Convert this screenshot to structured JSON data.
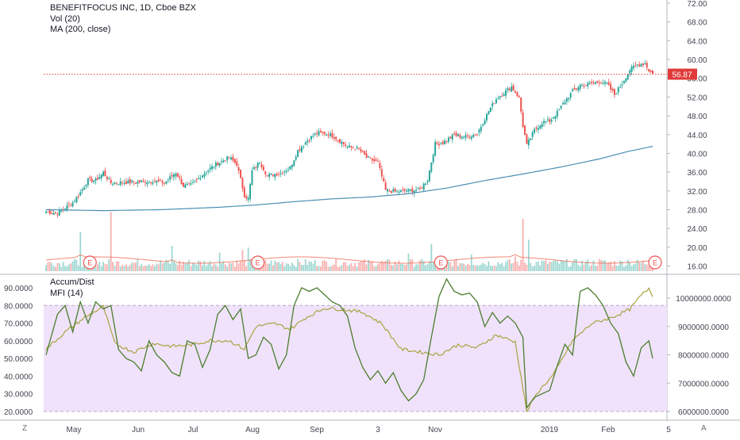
{
  "main_legend": {
    "title": "BENEFITFOCUS INC, 1D, Cboe BZX",
    "vol": "Vol (20)",
    "ma": "MA (200, close)"
  },
  "osc_legend": {
    "accum": "Accum/Dist",
    "mfi": "MFI (14)"
  },
  "scale_buttons": {
    "left": "Z",
    "right": "A"
  },
  "colors": {
    "up": "#26a69a",
    "down": "#ef5350",
    "ma": "#4a8fb3",
    "mfi": "#4b7e2d",
    "accum": "#a9a43f",
    "band": "#f0e2fb",
    "last_price": "#e03a3a"
  },
  "chart_data": [
    {
      "type": "candlestick",
      "title": "BENEFITFOCUS INC, 1D, Cboe BZX",
      "ylim": [
        16,
        72
      ],
      "y_ticks": [
        "72.00",
        "68.00",
        "64.00",
        "60.00",
        "56.00",
        "52.00",
        "48.00",
        "44.00",
        "40.00",
        "36.00",
        "32.00",
        "28.00",
        "24.00",
        "20.00",
        "16.00"
      ],
      "x_ticks": [
        "May",
        "Jun",
        "Jul",
        "Aug",
        "Sep",
        "3",
        "Nov",
        "2019",
        "Feb",
        "5"
      ],
      "last_price": "56.87",
      "close_anchors": [
        [
          0,
          27.6
        ],
        [
          6,
          27.2
        ],
        [
          10,
          28.4
        ],
        [
          14,
          29.5
        ],
        [
          18,
          31.7
        ],
        [
          22,
          34.3
        ],
        [
          26,
          34.2
        ],
        [
          30,
          35.9
        ],
        [
          34,
          33.7
        ],
        [
          40,
          33.8
        ],
        [
          48,
          33.9
        ],
        [
          56,
          34.2
        ],
        [
          62,
          33.7
        ],
        [
          68,
          35.9
        ],
        [
          72,
          33.1
        ],
        [
          76,
          33.2
        ],
        [
          84,
          36.2
        ],
        [
          90,
          37.9
        ],
        [
          96,
          39.1
        ],
        [
          100,
          37.7
        ],
        [
          104,
          31.1
        ],
        [
          106,
          30.3
        ],
        [
          108,
          36.2
        ],
        [
          112,
          38.2
        ],
        [
          116,
          35.2
        ],
        [
          124,
          36.0
        ],
        [
          128,
          37.0
        ],
        [
          132,
          40.6
        ],
        [
          138,
          43.2
        ],
        [
          142,
          44.3
        ],
        [
          146,
          44.3
        ],
        [
          150,
          43.8
        ],
        [
          154,
          42.7
        ],
        [
          158,
          41.4
        ],
        [
          164,
          40.9
        ],
        [
          168,
          39.1
        ],
        [
          174,
          38.0
        ],
        [
          178,
          32.1
        ],
        [
          184,
          31.8
        ],
        [
          190,
          32.1
        ],
        [
          196,
          32.3
        ],
        [
          200,
          34.4
        ],
        [
          204,
          42.0
        ],
        [
          208,
          42.3
        ],
        [
          214,
          43.9
        ],
        [
          220,
          43.5
        ],
        [
          226,
          44.2
        ],
        [
          232,
          49.0
        ],
        [
          236,
          51.6
        ],
        [
          240,
          52.9
        ],
        [
          244,
          54.2
        ],
        [
          248,
          51.9
        ],
        [
          250,
          45.9
        ],
        [
          252,
          41.7
        ],
        [
          256,
          44.9
        ],
        [
          260,
          46.6
        ],
        [
          264,
          46.9
        ],
        [
          268,
          48.7
        ],
        [
          272,
          51.1
        ],
        [
          276,
          53.2
        ],
        [
          280,
          54.5
        ],
        [
          284,
          54.7
        ],
        [
          290,
          55.3
        ],
        [
          294,
          54.8
        ],
        [
          298,
          52.5
        ],
        [
          302,
          54.9
        ],
        [
          306,
          57.8
        ],
        [
          310,
          58.9
        ],
        [
          314,
          59.2
        ],
        [
          316,
          57.7
        ],
        [
          318,
          56.9
        ]
      ],
      "ma200": [
        [
          0,
          28.0
        ],
        [
          30,
          27.8
        ],
        [
          60,
          28.0
        ],
        [
          90,
          28.5
        ],
        [
          110,
          29.0
        ],
        [
          130,
          29.7
        ],
        [
          150,
          30.3
        ],
        [
          170,
          30.7
        ],
        [
          190,
          31.4
        ],
        [
          210,
          32.6
        ],
        [
          230,
          34.2
        ],
        [
          250,
          35.6
        ],
        [
          270,
          37.1
        ],
        [
          290,
          38.8
        ],
        [
          305,
          40.4
        ],
        [
          318,
          41.5
        ]
      ]
    },
    {
      "type": "bar",
      "name": "Vol (20)",
      "spikes": [
        [
          18,
          4.5
        ],
        [
          34,
          6.8
        ],
        [
          66,
          2.9
        ],
        [
          91,
          2.1
        ],
        [
          103,
          2.4
        ],
        [
          106,
          2.7
        ],
        [
          190,
          2.0
        ],
        [
          202,
          3.1
        ],
        [
          223,
          1.9
        ],
        [
          246,
          1.7
        ],
        [
          250,
          6.0
        ],
        [
          253,
          3.6
        ],
        [
          290,
          1.4
        ],
        [
          305,
          1.3
        ]
      ]
    },
    {
      "type": "line",
      "name": "MFI (14)",
      "ylim": [
        16,
        100
      ],
      "y_ticks": [
        "90.0000",
        "80.0000",
        "70.0000",
        "60.0000",
        "50.0000",
        "40.0000",
        "30.0000",
        "20.0000"
      ],
      "band": [
        20,
        80
      ],
      "points": [
        [
          0,
          52
        ],
        [
          6,
          75
        ],
        [
          10,
          80
        ],
        [
          14,
          65
        ],
        [
          18,
          82
        ],
        [
          22,
          70
        ],
        [
          26,
          82
        ],
        [
          30,
          78
        ],
        [
          34,
          80
        ],
        [
          38,
          55
        ],
        [
          42,
          50
        ],
        [
          46,
          48
        ],
        [
          50,
          43
        ],
        [
          54,
          60
        ],
        [
          58,
          52
        ],
        [
          62,
          48
        ],
        [
          66,
          42
        ],
        [
          70,
          40
        ],
        [
          74,
          60
        ],
        [
          78,
          58
        ],
        [
          82,
          45
        ],
        [
          86,
          55
        ],
        [
          90,
          75
        ],
        [
          94,
          80
        ],
        [
          98,
          72
        ],
        [
          102,
          78
        ],
        [
          106,
          50
        ],
        [
          110,
          52
        ],
        [
          114,
          62
        ],
        [
          118,
          58
        ],
        [
          122,
          44
        ],
        [
          126,
          52
        ],
        [
          130,
          80
        ],
        [
          134,
          90
        ],
        [
          138,
          88
        ],
        [
          142,
          90
        ],
        [
          146,
          86
        ],
        [
          150,
          82
        ],
        [
          154,
          80
        ],
        [
          158,
          74
        ],
        [
          162,
          56
        ],
        [
          166,
          45
        ],
        [
          170,
          38
        ],
        [
          174,
          43
        ],
        [
          178,
          36
        ],
        [
          182,
          42
        ],
        [
          186,
          32
        ],
        [
          190,
          26
        ],
        [
          194,
          30
        ],
        [
          198,
          38
        ],
        [
          202,
          62
        ],
        [
          206,
          85
        ],
        [
          210,
          95
        ],
        [
          214,
          88
        ],
        [
          218,
          86
        ],
        [
          222,
          87
        ],
        [
          226,
          82
        ],
        [
          230,
          68
        ],
        [
          234,
          76
        ],
        [
          238,
          70
        ],
        [
          242,
          74
        ],
        [
          246,
          70
        ],
        [
          250,
          62
        ],
        [
          252,
          22
        ],
        [
          256,
          28
        ],
        [
          260,
          30
        ],
        [
          264,
          32
        ],
        [
          268,
          46
        ],
        [
          272,
          58
        ],
        [
          276,
          52
        ],
        [
          280,
          88
        ],
        [
          284,
          90
        ],
        [
          288,
          86
        ],
        [
          292,
          80
        ],
        [
          296,
          70
        ],
        [
          300,
          64
        ],
        [
          304,
          48
        ],
        [
          308,
          40
        ],
        [
          312,
          56
        ],
        [
          316,
          60
        ],
        [
          318,
          50
        ]
      ]
    },
    {
      "type": "line",
      "name": "Accum/Dist",
      "ylim": [
        5800000,
        10400000
      ],
      "y_ticks": [
        "10000000.0000",
        "9000000.0000",
        "8000000.0000",
        "7000000.0000",
        "6000000.0000"
      ],
      "points": [
        [
          0,
          8200000
        ],
        [
          10,
          8800000
        ],
        [
          20,
          9300000
        ],
        [
          30,
          9700000
        ],
        [
          36,
          8400000
        ],
        [
          46,
          8100000
        ],
        [
          56,
          8400000
        ],
        [
          66,
          8300000
        ],
        [
          76,
          8350000
        ],
        [
          86,
          8500000
        ],
        [
          96,
          8500000
        ],
        [
          104,
          8200000
        ],
        [
          110,
          9000000
        ],
        [
          120,
          9100000
        ],
        [
          128,
          8900000
        ],
        [
          136,
          9300000
        ],
        [
          146,
          9650000
        ],
        [
          156,
          9600000
        ],
        [
          166,
          9500000
        ],
        [
          176,
          9100000
        ],
        [
          186,
          8200000
        ],
        [
          196,
          8100000
        ],
        [
          206,
          8000000
        ],
        [
          216,
          8350000
        ],
        [
          226,
          8250000
        ],
        [
          236,
          8700000
        ],
        [
          246,
          8450000
        ],
        [
          252,
          6000000
        ],
        [
          258,
          6700000
        ],
        [
          266,
          7300000
        ],
        [
          276,
          8500000
        ],
        [
          286,
          9100000
        ],
        [
          296,
          9300000
        ],
        [
          306,
          9600000
        ],
        [
          312,
          10100000
        ],
        [
          316,
          10350000
        ],
        [
          318,
          10100000
        ]
      ]
    }
  ]
}
